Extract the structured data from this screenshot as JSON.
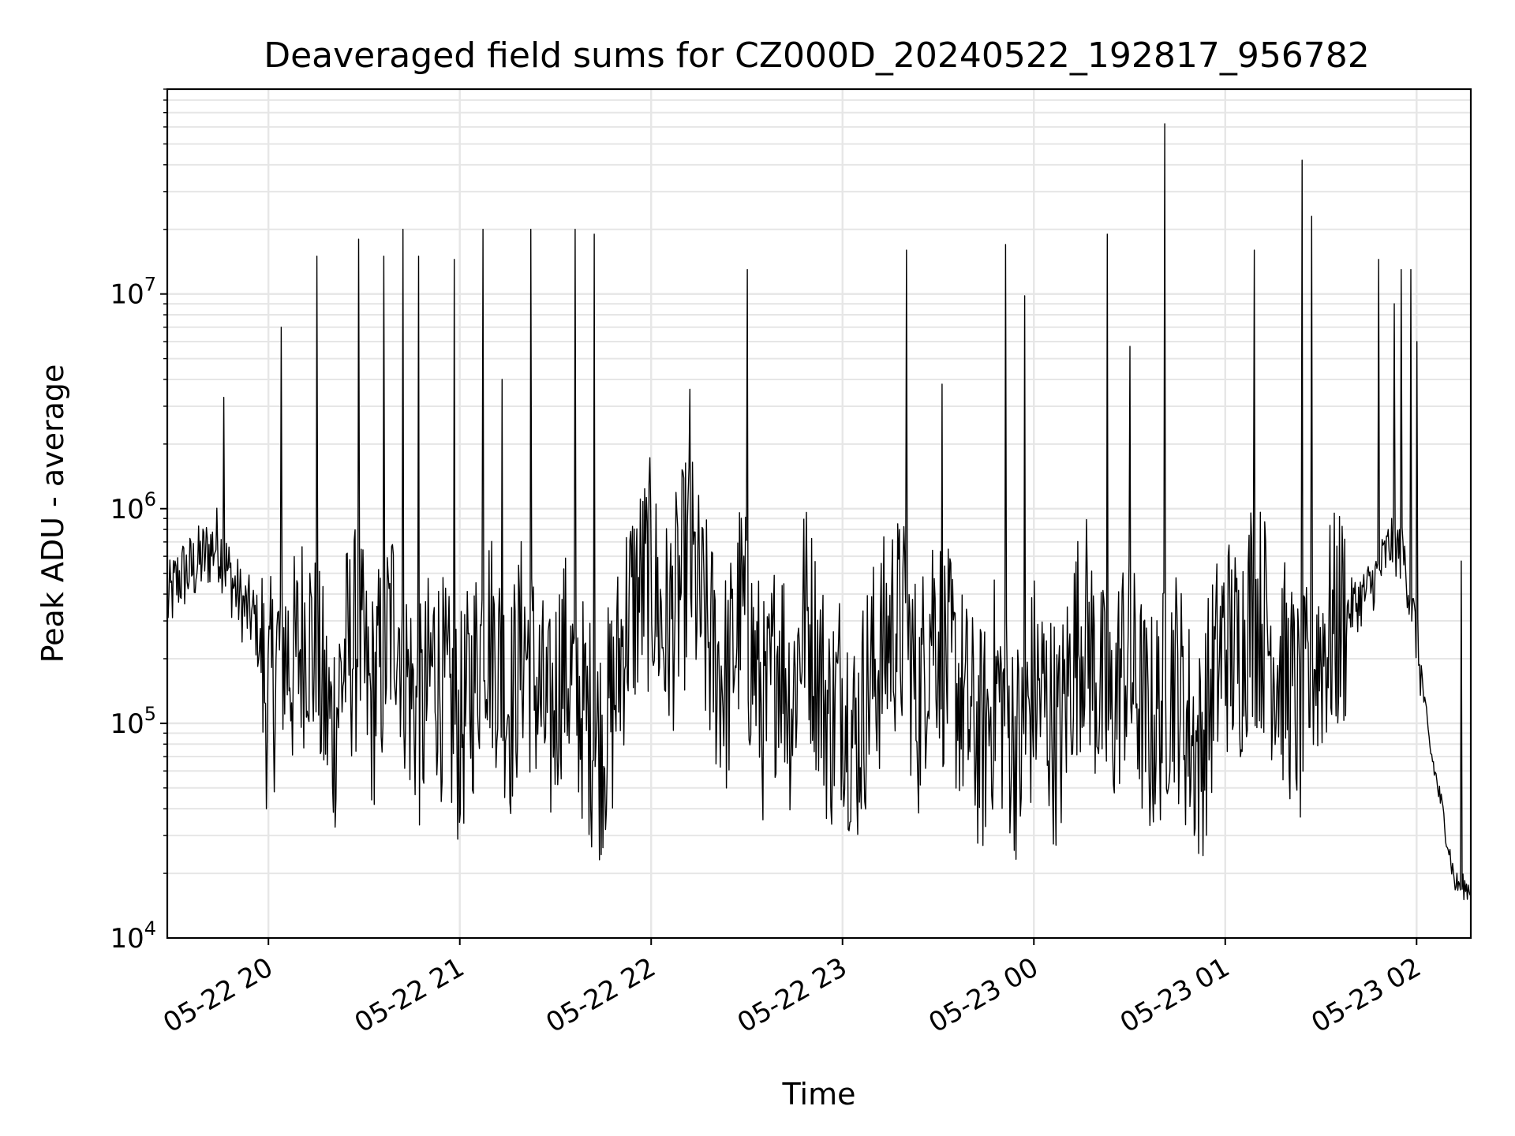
{
  "chart_data": {
    "type": "line",
    "title": "Deaveraged field sums for CZ000D_20240522_192817_956782",
    "xlabel": "Time",
    "ylabel": "Peak ADU - average",
    "y_scale": "log",
    "ylim": [
      10000,
      90000000
    ],
    "xlim": [
      "2024-05-22 19:28:17",
      "2024-05-23 02:17:00"
    ],
    "grid": true,
    "line_color": "#000000",
    "x_ticks": [
      {
        "time": "2024-05-22 20:00",
        "label": "05-22 20"
      },
      {
        "time": "2024-05-22 21:00",
        "label": "05-22 21"
      },
      {
        "time": "2024-05-22 22:00",
        "label": "05-22 22"
      },
      {
        "time": "2024-05-22 23:00",
        "label": "05-22 23"
      },
      {
        "time": "2024-05-23 00:00",
        "label": "05-23 00"
      },
      {
        "time": "2024-05-23 01:00",
        "label": "05-23 01"
      },
      {
        "time": "2024-05-23 02:00",
        "label": "05-23 02"
      }
    ],
    "y_ticks": [
      {
        "value": 10000,
        "base": "10",
        "exp": "4"
      },
      {
        "value": 100000,
        "base": "10",
        "exp": "5"
      },
      {
        "value": 1000000,
        "base": "10",
        "exp": "6"
      },
      {
        "value": 10000000,
        "base": "10",
        "exp": "7"
      }
    ],
    "series": [
      {
        "x": [
          "2024-05-22 19:28",
          "2024-05-22 19:32",
          "2024-05-22 19:36",
          "2024-05-22 19:40",
          "2024-05-22 19:44",
          "2024-05-22 19:48",
          "2024-05-22 19:52",
          "2024-05-22 19:56",
          "2024-05-22 20:00",
          "2024-05-22 20:04",
          "2024-05-22 20:08",
          "2024-05-22 20:12",
          "2024-05-22 20:16",
          "2024-05-22 20:20",
          "2024-05-22 20:24",
          "2024-05-22 20:28",
          "2024-05-22 20:32",
          "2024-05-22 20:36",
          "2024-05-22 20:40",
          "2024-05-22 20:44",
          "2024-05-22 20:48",
          "2024-05-22 20:52",
          "2024-05-22 20:56",
          "2024-05-22 21:00",
          "2024-05-22 21:04",
          "2024-05-22 21:08",
          "2024-05-22 21:12",
          "2024-05-22 21:16",
          "2024-05-22 21:20",
          "2024-05-22 21:24",
          "2024-05-22 21:28",
          "2024-05-22 21:32",
          "2024-05-22 21:36",
          "2024-05-22 21:40",
          "2024-05-22 21:44",
          "2024-05-22 21:48",
          "2024-05-22 21:52",
          "2024-05-22 21:56",
          "2024-05-22 22:00",
          "2024-05-22 22:04",
          "2024-05-22 22:08",
          "2024-05-22 22:12",
          "2024-05-22 22:16",
          "2024-05-22 22:20",
          "2024-05-22 22:24",
          "2024-05-22 22:28",
          "2024-05-22 22:32",
          "2024-05-22 22:36",
          "2024-05-22 22:40",
          "2024-05-22 22:44",
          "2024-05-22 22:48",
          "2024-05-22 22:52",
          "2024-05-22 22:56",
          "2024-05-22 23:00",
          "2024-05-22 23:04",
          "2024-05-22 23:08",
          "2024-05-22 23:12",
          "2024-05-22 23:16",
          "2024-05-22 23:20",
          "2024-05-22 23:24",
          "2024-05-22 23:28",
          "2024-05-22 23:32",
          "2024-05-22 23:36",
          "2024-05-22 23:40",
          "2024-05-22 23:44",
          "2024-05-22 23:48",
          "2024-05-22 23:52",
          "2024-05-22 23:56",
          "2024-05-23 00:00",
          "2024-05-23 00:04",
          "2024-05-23 00:08",
          "2024-05-23 00:12",
          "2024-05-23 00:16",
          "2024-05-23 00:20",
          "2024-05-23 00:24",
          "2024-05-23 00:28",
          "2024-05-23 00:32",
          "2024-05-23 00:36",
          "2024-05-23 00:40",
          "2024-05-23 00:44",
          "2024-05-23 00:48",
          "2024-05-23 00:52",
          "2024-05-23 00:56",
          "2024-05-23 01:00",
          "2024-05-23 01:04",
          "2024-05-23 01:08",
          "2024-05-23 01:12",
          "2024-05-23 01:16",
          "2024-05-23 01:20",
          "2024-05-23 01:24",
          "2024-05-23 01:28",
          "2024-05-23 01:32",
          "2024-05-23 01:36",
          "2024-05-23 01:40",
          "2024-05-23 01:44",
          "2024-05-23 01:48",
          "2024-05-23 01:52",
          "2024-05-23 01:56",
          "2024-05-23 02:00",
          "2024-05-23 02:04",
          "2024-05-23 02:08",
          "2024-05-23 02:12",
          "2024-05-23 02:16"
        ],
        "y": [
          350000,
          480000,
          520000,
          600000,
          700000,
          480000,
          350000,
          300000,
          120000,
          250000,
          180000,
          300000,
          150000,
          90000,
          200000,
          250000,
          120000,
          200000,
          350000,
          150000,
          100000,
          200000,
          120000,
          90000,
          150000,
          300000,
          200000,
          120000,
          250000,
          150000,
          90000,
          200000,
          150000,
          100000,
          80000,
          120000,
          300000,
          400000,
          500000,
          250000,
          350000,
          600000,
          300000,
          200000,
          150000,
          350000,
          200000,
          100000,
          250000,
          120000,
          350000,
          200000,
          100000,
          150000,
          80000,
          150000,
          200000,
          300000,
          250000,
          120000,
          350000,
          200000,
          150000,
          100000,
          80000,
          150000,
          100000,
          70000,
          150000,
          120000,
          80000,
          200000,
          300000,
          150000,
          100000,
          200000,
          150000,
          90000,
          120000,
          180000,
          100000,
          70000,
          150000,
          250000,
          200000,
          350000,
          300000,
          200000,
          150000,
          100000,
          200000,
          250000,
          300000,
          350000,
          400000,
          500000,
          700000,
          600000,
          250000,
          80000,
          40000,
          18000,
          17000
        ],
        "spikes": [
          {
            "time": "2024-05-22 19:46",
            "value": 3300000
          },
          {
            "time": "2024-05-22 20:04",
            "value": 7000000
          },
          {
            "time": "2024-05-22 20:15",
            "value": 15000000
          },
          {
            "time": "2024-05-22 20:28",
            "value": 18000000
          },
          {
            "time": "2024-05-22 20:36",
            "value": 15000000
          },
          {
            "time": "2024-05-22 20:42",
            "value": 20000000
          },
          {
            "time": "2024-05-22 20:47",
            "value": 15000000
          },
          {
            "time": "2024-05-22 20:58",
            "value": 14500000
          },
          {
            "time": "2024-05-22 21:07",
            "value": 20000000
          },
          {
            "time": "2024-05-22 21:13",
            "value": 4000000
          },
          {
            "time": "2024-05-22 21:22",
            "value": 20000000
          },
          {
            "time": "2024-05-22 21:36",
            "value": 20000000
          },
          {
            "time": "2024-05-22 21:42",
            "value": 19000000
          },
          {
            "time": "2024-05-22 22:12",
            "value": 3600000
          },
          {
            "time": "2024-05-22 22:30",
            "value": 13000000
          },
          {
            "time": "2024-05-22 23:20",
            "value": 16000000
          },
          {
            "time": "2024-05-22 23:31",
            "value": 3800000
          },
          {
            "time": "2024-05-22 23:51",
            "value": 17000000
          },
          {
            "time": "2024-05-22 23:57",
            "value": 9800000
          },
          {
            "time": "2024-05-23 00:23",
            "value": 19000000
          },
          {
            "time": "2024-05-23 00:30",
            "value": 5700000
          },
          {
            "time": "2024-05-23 00:41",
            "value": 62000000
          },
          {
            "time": "2024-05-23 01:09",
            "value": 16000000
          },
          {
            "time": "2024-05-23 01:24",
            "value": 42000000
          },
          {
            "time": "2024-05-23 01:27",
            "value": 23000000
          },
          {
            "time": "2024-05-23 01:48",
            "value": 14500000
          },
          {
            "time": "2024-05-23 01:53",
            "value": 9000000
          },
          {
            "time": "2024-05-23 01:55",
            "value": 13000000
          },
          {
            "time": "2024-05-23 01:58",
            "value": 13000000
          },
          {
            "time": "2024-05-23 02:00",
            "value": 6000000
          },
          {
            "time": "2024-05-23 02:14",
            "value": 570000
          }
        ]
      }
    ]
  }
}
